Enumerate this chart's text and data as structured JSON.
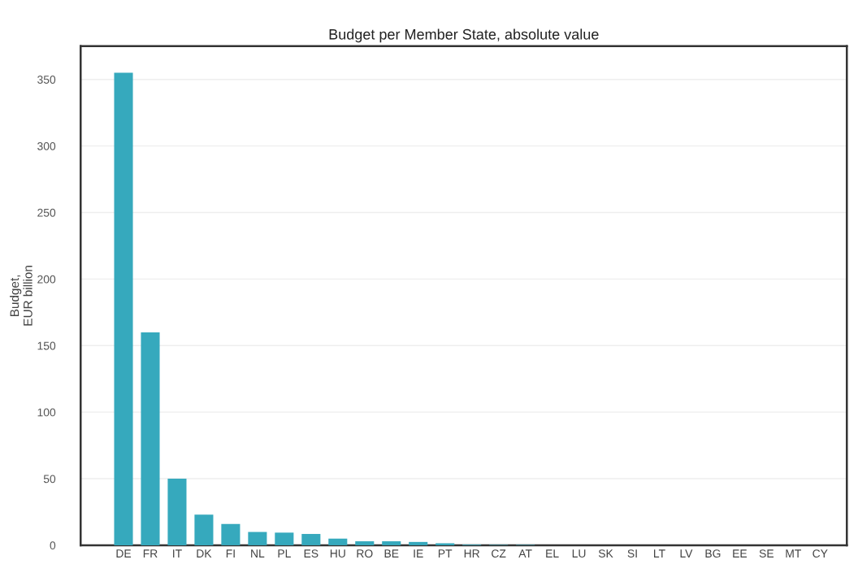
{
  "chart_data": {
    "type": "bar",
    "title": "Budget per Member State, absolute value",
    "ylabel": "Budget,\nEUR billion",
    "categories": [
      "DE",
      "FR",
      "IT",
      "DK",
      "FI",
      "NL",
      "PL",
      "ES",
      "HU",
      "RO",
      "BE",
      "IE",
      "PT",
      "HR",
      "CZ",
      "AT",
      "EL",
      "LU",
      "SK",
      "SI",
      "LT",
      "LV",
      "BG",
      "EE",
      "SE",
      "MT",
      "CY"
    ],
    "values": [
      355,
      160,
      50,
      23,
      16,
      10,
      9.5,
      8.5,
      5,
      3,
      3,
      2.5,
      1.5,
      0.5,
      0.3,
      0.3,
      null,
      null,
      null,
      null,
      null,
      null,
      null,
      null,
      null,
      null,
      null
    ],
    "color": "#36a9bd",
    "ylim": [
      0,
      375
    ],
    "yticks": [
      0,
      50,
      100,
      150,
      200,
      250,
      300,
      350
    ],
    "grid": "y"
  }
}
